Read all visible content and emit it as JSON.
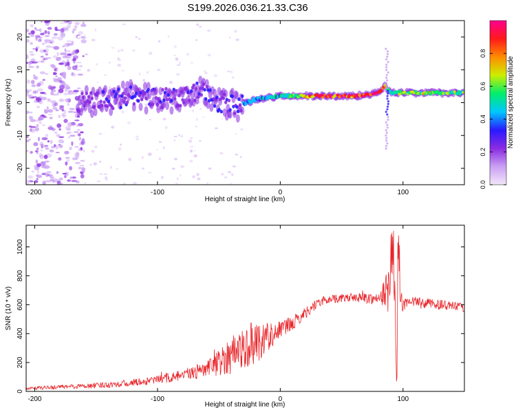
{
  "title": "S199.2026.036.21.33.C36",
  "colors": {
    "snr_line": "#e8262b",
    "axis": "#000000",
    "background": "#ffffff"
  },
  "chart_data": [
    {
      "type": "heatmap",
      "name": "spectrogram",
      "xlabel": "Height of straight line (km)",
      "ylabel": "Frequency (Hz)",
      "xlim": [
        -207,
        150
      ],
      "ylim": [
        -25,
        25
      ],
      "xticks": [
        -200,
        -100,
        0,
        100
      ],
      "yticks": [
        -20,
        -10,
        0,
        10,
        20
      ],
      "xtick_labels": [
        "-200",
        "-100",
        "0",
        "100"
      ],
      "ytick_labels": [
        "-20",
        "-10",
        "0",
        "10",
        "20"
      ],
      "colorbar": {
        "label": "Normalized spectral amplitude",
        "range": [
          0.0,
          1.0
        ],
        "ticks": [
          0.0,
          0.2,
          0.4,
          0.6,
          0.8
        ],
        "tick_labels": [
          "0.0",
          "0.2",
          "0.4",
          "0.6",
          "0.8"
        ],
        "colormap": [
          "#f3e6fb",
          "#c9a0f3",
          "#8a2be2",
          "#2a1aff",
          "#00c8ff",
          "#00ee6a",
          "#ccee00",
          "#ff8c00",
          "#ff1a1a",
          "#ff0090"
        ]
      },
      "ridge_x": [
        -160,
        -140,
        -120,
        -100,
        -80,
        -65,
        -50,
        -35,
        -20,
        0,
        20,
        40,
        60,
        80,
        85,
        88,
        90,
        100,
        120,
        150
      ],
      "ridge_frequency": [
        0,
        1,
        2,
        1,
        2,
        4,
        0,
        -1,
        1,
        2,
        2,
        2,
        2,
        3,
        5,
        4,
        3,
        3,
        3,
        3
      ],
      "ridge_amplitude": [
        0.25,
        0.3,
        0.3,
        0.3,
        0.3,
        0.3,
        0.3,
        0.35,
        0.45,
        0.5,
        0.7,
        0.9,
        0.9,
        0.95,
        0.8,
        0.6,
        0.5,
        0.6,
        0.65,
        0.55
      ],
      "noise_region_x": [
        -207,
        -160
      ],
      "noise_region_amplitude": 0.15
    },
    {
      "type": "line",
      "name": "snr",
      "xlabel": "Height of straight line (km)",
      "ylabel": "SNR (10 * v/v)",
      "xlim": [
        -207,
        150
      ],
      "ylim": [
        0,
        1150
      ],
      "xticks": [
        -200,
        -100,
        0,
        100
      ],
      "yticks": [
        0,
        200,
        400,
        600,
        800,
        1000
      ],
      "xtick_labels": [
        "-200",
        "-100",
        "0",
        "100"
      ],
      "ytick_labels": [
        "0",
        "200",
        "400",
        "600",
        "800",
        "1000"
      ],
      "series": [
        {
          "name": "SNR",
          "x": [
            -207,
            -180,
            -150,
            -120,
            -100,
            -80,
            -60,
            -50,
            -40,
            -30,
            -20,
            -10,
            0,
            10,
            20,
            30,
            40,
            60,
            80,
            88,
            90,
            92,
            94,
            95,
            96,
            98,
            100,
            110,
            130,
            150
          ],
          "values": [
            20,
            30,
            40,
            60,
            80,
            110,
            150,
            200,
            260,
            300,
            340,
            380,
            430,
            470,
            540,
            610,
            640,
            650,
            640,
            700,
            900,
            1050,
            300,
            80,
            1100,
            650,
            600,
            620,
            600,
            580
          ],
          "noise": [
            10,
            15,
            20,
            25,
            30,
            40,
            60,
            90,
            140,
            150,
            150,
            110,
            60,
            50,
            40,
            35,
            30,
            30,
            40,
            150,
            250,
            300,
            200,
            60,
            250,
            120,
            40,
            35,
            35,
            30
          ]
        }
      ]
    }
  ]
}
